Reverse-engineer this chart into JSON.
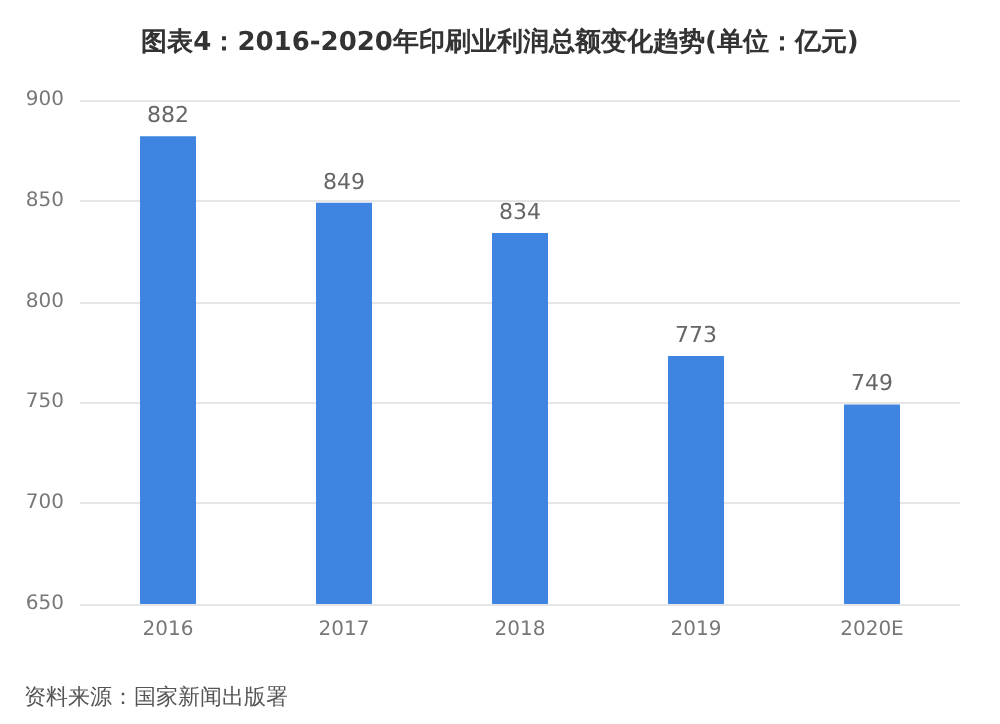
{
  "chart_data": {
    "type": "bar",
    "title": "图表4：2016-2020年印刷业利润总额变化趋势(单位：亿元)",
    "categories": [
      "2016",
      "2017",
      "2018",
      "2019",
      "2020E"
    ],
    "values": [
      882,
      849,
      834,
      773,
      749
    ],
    "color": "#3f84e0",
    "ylim": [
      650,
      900
    ],
    "yticks": [
      650,
      700,
      750,
      800,
      850,
      900
    ],
    "grid": "y",
    "data_labels": true,
    "annotations": [
      "资料来源：国家新闻出版署"
    ]
  }
}
